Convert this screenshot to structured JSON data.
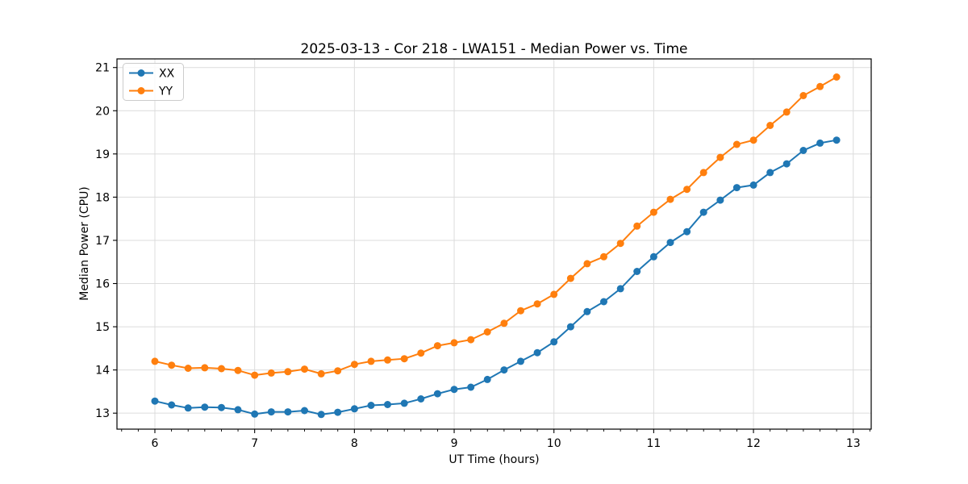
{
  "chart_data": {
    "type": "line",
    "title": "2025-03-13 - Cor 218 - LWA151 - Median Power vs. Time",
    "xlabel": "UT Time (hours)",
    "ylabel": "Median Power (CPU)",
    "x": [
      6.0,
      6.167,
      6.333,
      6.5,
      6.667,
      6.833,
      7.0,
      7.167,
      7.333,
      7.5,
      7.667,
      7.833,
      8.0,
      8.167,
      8.333,
      8.5,
      8.667,
      8.833,
      9.0,
      9.167,
      9.333,
      9.5,
      9.667,
      9.833,
      10.0,
      10.167,
      10.333,
      10.5,
      10.667,
      10.833,
      11.0,
      11.167,
      11.333,
      11.5,
      11.667,
      11.833,
      12.0,
      12.167,
      12.333,
      12.5,
      12.667,
      12.833
    ],
    "series": [
      {
        "name": "XX",
        "color": "#1f77b4",
        "values": [
          13.28,
          13.19,
          13.12,
          13.14,
          13.13,
          13.08,
          12.98,
          13.03,
          13.03,
          13.06,
          12.97,
          13.02,
          13.1,
          13.18,
          13.2,
          13.23,
          13.33,
          13.45,
          13.55,
          13.6,
          13.78,
          14.0,
          14.2,
          14.4,
          14.65,
          15.0,
          15.35,
          15.58,
          15.88,
          16.28,
          16.62,
          16.95,
          17.2,
          17.65,
          17.93,
          18.22,
          18.28,
          18.57,
          18.77,
          19.08,
          19.25,
          19.32
        ]
      },
      {
        "name": "YY",
        "color": "#ff7f0e",
        "values": [
          14.2,
          14.11,
          14.04,
          14.05,
          14.03,
          13.99,
          13.88,
          13.93,
          13.96,
          14.02,
          13.91,
          13.98,
          14.13,
          14.2,
          14.23,
          14.26,
          14.39,
          14.56,
          14.63,
          14.7,
          14.88,
          15.08,
          15.37,
          15.53,
          15.75,
          16.12,
          16.46,
          16.62,
          16.93,
          17.33,
          17.65,
          17.95,
          18.18,
          18.57,
          18.92,
          19.22,
          19.32,
          19.66,
          19.97,
          20.35,
          20.56,
          20.78
        ]
      }
    ],
    "xlim": [
      5.62,
      13.18
    ],
    "ylim": [
      12.63,
      21.2
    ],
    "xticks": [
      6,
      7,
      8,
      9,
      10,
      11,
      12,
      13
    ],
    "yticks": [
      13,
      14,
      15,
      16,
      17,
      18,
      19,
      20,
      21
    ],
    "x_minor_step": 0.16667,
    "grid": true,
    "grid_color": "#dcdcdc",
    "legend_position": "upper left",
    "marker": "o"
  }
}
